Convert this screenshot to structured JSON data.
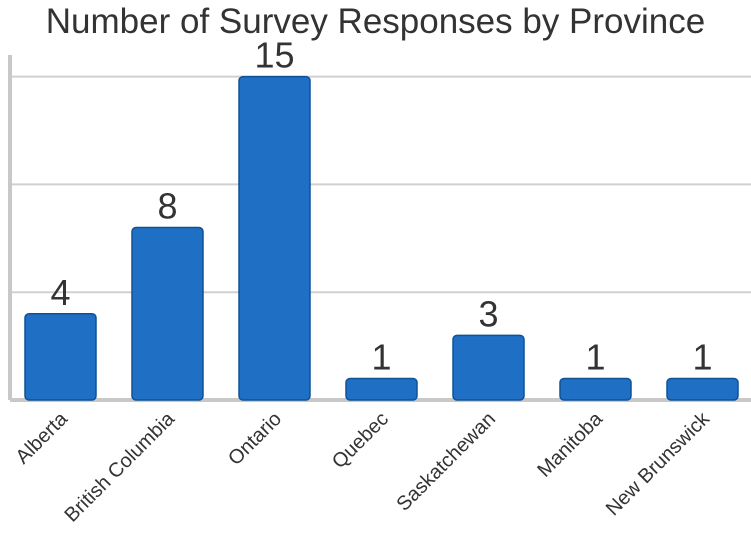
{
  "chart_data": {
    "type": "bar",
    "title": "Number of Survey Responses by Province",
    "xlabel": "",
    "ylabel": "",
    "categories": [
      "Alberta",
      "British Columbia",
      "Ontario",
      "Quebec",
      "Saskatchewan",
      "Manitoba",
      "New Brunswick"
    ],
    "values": [
      4,
      8,
      15,
      1,
      3,
      1,
      1
    ],
    "ylim": [
      0,
      16
    ],
    "grid": true,
    "legend": "none",
    "colors": {
      "bar": "#1f6fc4",
      "bar_edge": "#0f5296",
      "grid": "#d0d0d0",
      "axis": "#c8c8c8",
      "text": "#333333"
    }
  }
}
